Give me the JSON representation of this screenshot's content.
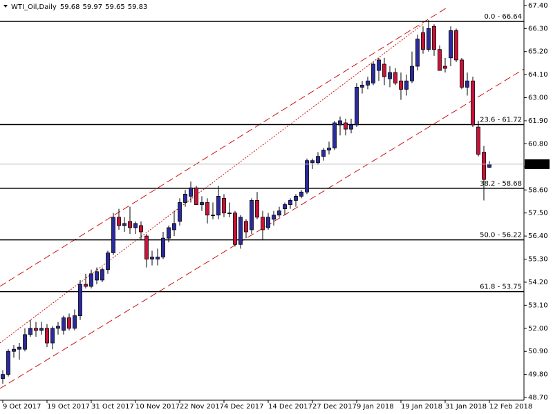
{
  "chart_data": {
    "type": "candlestick",
    "symbol": "WTI_Oil,Daily",
    "up_color": "#2a2aa0",
    "down_color": "#cc1138",
    "categories": [
      "9 Oct 2017",
      null,
      null,
      null,
      null,
      null,
      null,
      null,
      "19 Oct 2017",
      null,
      null,
      null,
      null,
      null,
      null,
      null,
      "31 Oct 2017",
      null,
      null,
      null,
      null,
      null,
      null,
      null,
      "10 Nov 2017",
      null,
      null,
      null,
      null,
      null,
      null,
      null,
      "22 Nov 2017",
      null,
      null,
      null,
      null,
      null,
      null,
      null,
      "4 Dec 2017",
      null,
      null,
      null,
      null,
      null,
      null,
      null,
      "14 Dec 2017",
      null,
      null,
      null,
      null,
      null,
      null,
      null,
      "27 Dec 2017",
      null,
      null,
      null,
      null,
      null,
      null,
      null,
      "9 Jan 2018",
      null,
      null,
      null,
      null,
      null,
      null,
      null,
      "19 Jan 2018",
      null,
      null,
      null,
      null,
      null,
      null,
      null,
      "31 Jan 2018",
      null,
      null,
      null,
      null,
      null,
      null,
      null,
      "12 Feb 2018"
    ],
    "open": [
      49.6,
      49.8,
      50.9,
      51.0,
      51.0,
      51.7,
      52.0,
      51.9,
      52.0,
      51.3,
      52.0,
      51.9,
      52.5,
      52.0,
      52.6,
      54.1,
      54.0,
      54.3,
      54.3,
      54.8,
      55.6,
      57.3,
      56.9,
      57.1,
      56.8,
      56.9,
      56.4,
      55.3,
      55.3,
      55.4,
      56.3,
      56.7,
      57.1,
      58.0,
      58.3,
      58.7,
      57.9,
      58.0,
      57.4,
      57.4,
      58.2,
      57.5,
      57.5,
      56.0,
      57.1,
      56.7,
      58.1,
      57.3,
      56.8,
      57.2,
      57.4,
      57.7,
      57.9,
      58.1,
      58.3,
      58.5,
      59.9,
      59.9,
      60.2,
      60.5,
      60.6,
      61.7,
      61.8,
      61.5,
      61.7,
      63.5,
      63.6,
      63.7,
      64.3,
      64.6,
      63.9,
      64.2,
      63.8,
      63.4,
      63.8,
      64.5,
      66.1,
      65.3,
      66.4,
      65.3,
      64.5,
      64.9,
      66.2,
      64.8,
      63.5,
      63.8,
      61.6,
      60.4,
      59.68
    ],
    "high": [
      50.0,
      51.0,
      51.2,
      51.3,
      52.0,
      52.4,
      52.3,
      52.3,
      52.2,
      52.1,
      52.3,
      52.6,
      52.7,
      52.9,
      54.3,
      54.6,
      54.8,
      54.9,
      54.9,
      55.7,
      57.5,
      57.7,
      57.3,
      57.8,
      57.1,
      57.1,
      56.5,
      55.7,
      55.8,
      56.6,
      56.9,
      57.6,
      58.2,
      58.6,
      59.0,
      58.8,
      58.3,
      58.2,
      58.0,
      58.8,
      58.4,
      58.0,
      57.6,
      57.4,
      57.2,
      58.2,
      58.5,
      57.6,
      57.5,
      57.6,
      57.8,
      58.0,
      58.2,
      58.4,
      58.6,
      60.1,
      60.1,
      60.4,
      60.6,
      60.9,
      61.9,
      62.1,
      62.0,
      62.0,
      63.7,
      63.8,
      64.0,
      64.7,
      64.9,
      64.9,
      64.5,
      64.4,
      64.2,
      64.1,
      65.2,
      66.0,
      66.4,
      66.7,
      66.5,
      65.5,
      64.9,
      66.4,
      66.3,
      64.9,
      64.2,
      64.0,
      61.9,
      60.7,
      59.97
    ],
    "low": [
      49.35,
      49.7,
      50.6,
      50.5,
      50.9,
      51.6,
      51.6,
      51.7,
      51.1,
      51.0,
      51.7,
      51.7,
      51.9,
      51.9,
      52.4,
      53.9,
      53.9,
      54.1,
      54.2,
      54.6,
      55.5,
      56.7,
      56.6,
      56.5,
      56.5,
      56.2,
      54.9,
      55.0,
      55.0,
      55.3,
      56.1,
      56.4,
      56.9,
      57.8,
      58.0,
      57.9,
      57.6,
      57.0,
      57.2,
      57.2,
      57.3,
      57.3,
      55.9,
      55.8,
      56.3,
      56.5,
      57.2,
      56.2,
      56.7,
      56.9,
      57.3,
      57.4,
      57.7,
      57.8,
      58.2,
      58.4,
      59.6,
      59.8,
      60.0,
      60.3,
      60.5,
      61.2,
      61.2,
      61.3,
      61.6,
      63.2,
      63.4,
      63.6,
      63.8,
      63.6,
      63.5,
      63.6,
      62.9,
      63.1,
      63.7,
      64.3,
      65.1,
      65.2,
      65.0,
      64.3,
      64.2,
      64.5,
      64.7,
      63.4,
      63.1,
      61.6,
      60.2,
      58.1,
      59.65
    ],
    "close": [
      49.8,
      50.9,
      51.0,
      51.1,
      51.7,
      52.0,
      51.9,
      52.0,
      51.3,
      52.0,
      52.1,
      52.5,
      52.0,
      52.6,
      54.1,
      54.0,
      54.6,
      54.7,
      54.8,
      55.6,
      57.3,
      56.9,
      57.0,
      56.8,
      57.0,
      56.6,
      55.3,
      55.4,
      55.4,
      56.3,
      56.8,
      57.0,
      58.0,
      58.4,
      58.7,
      57.9,
      58.0,
      57.4,
      57.4,
      58.3,
      57.5,
      57.5,
      56.0,
      57.3,
      56.6,
      58.1,
      57.3,
      56.7,
      57.3,
      57.4,
      57.6,
      57.9,
      58.1,
      58.3,
      58.5,
      60.0,
      60.0,
      60.2,
      60.5,
      60.6,
      61.8,
      61.9,
      61.5,
      61.7,
      63.5,
      63.6,
      63.8,
      64.6,
      64.8,
      64.0,
      64.2,
      63.7,
      63.4,
      63.8,
      64.5,
      65.8,
      65.3,
      66.3,
      65.3,
      64.3,
      64.4,
      66.2,
      64.8,
      63.5,
      63.8,
      61.7,
      60.3,
      59.1,
      59.83
    ],
    "ylim": [
      48.57,
      67.66
    ],
    "yticks": [
      {
        "value": 48.7,
        "label": "48.70"
      },
      {
        "value": 49.8,
        "label": "49.80"
      },
      {
        "value": 50.9,
        "label": "50.90"
      },
      {
        "value": 52.0,
        "label": "52.00"
      },
      {
        "value": 53.1,
        "label": "53.10"
      },
      {
        "value": 54.2,
        "label": "54.20"
      },
      {
        "value": 55.3,
        "label": "55.30"
      },
      {
        "value": 56.4,
        "label": "56.40"
      },
      {
        "value": 57.5,
        "label": "57.50"
      },
      {
        "value": 58.6,
        "label": "58.60"
      },
      {
        "value": 59.7,
        "label": "59.70"
      },
      {
        "value": 60.8,
        "label": "60.80"
      },
      {
        "value": 61.9,
        "label": "61.90"
      },
      {
        "value": 63.0,
        "label": "63.00"
      },
      {
        "value": 64.1,
        "label": "64.10"
      },
      {
        "value": 65.2,
        "label": "65.20"
      },
      {
        "value": 66.3,
        "label": "66.30"
      },
      {
        "value": 67.4,
        "label": "67.40"
      }
    ],
    "levels": [
      {
        "value": 66.64,
        "label": "0.0 - 66.64"
      },
      {
        "value": 61.72,
        "label": "23.6 - 61.72"
      },
      {
        "value": 58.68,
        "label": "38.2 - 58.68"
      },
      {
        "value": 56.22,
        "label": "50.0 - 56.22"
      },
      {
        "value": 53.75,
        "label": "61.8 - 53.75"
      }
    ]
  }
}
